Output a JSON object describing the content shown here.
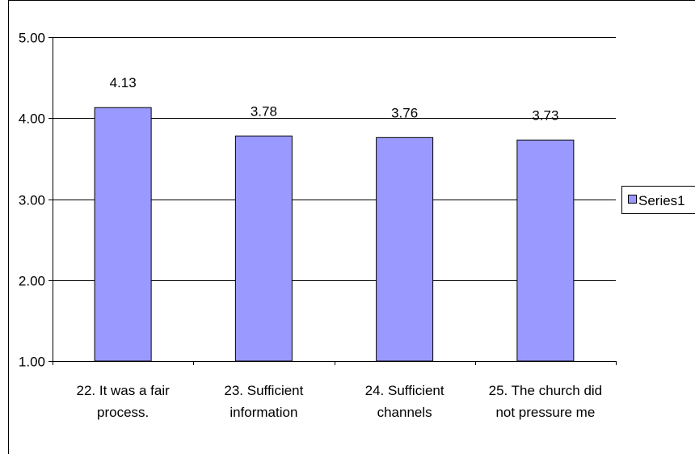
{
  "chart_data": {
    "type": "bar",
    "categories": [
      [
        "22. It was a fair",
        "process."
      ],
      [
        "23. Sufficient",
        "information"
      ],
      [
        "24. Sufficient",
        "channels"
      ],
      [
        "25. The church did",
        "not pressure me"
      ]
    ],
    "series": [
      {
        "name": "Series1",
        "values": [
          4.13,
          3.78,
          3.76,
          3.73
        ]
      }
    ],
    "data_labels": [
      "4.13",
      "3.78",
      "3.76",
      "3.73"
    ],
    "y_ticks": [
      "1.00",
      "2.00",
      "3.00",
      "4.00",
      "5.00"
    ],
    "ylim": [
      1,
      5
    ],
    "grid": true,
    "legend_position": "right",
    "title": "",
    "xlabel": "",
    "ylabel": "",
    "colors": {
      "bar_fill": "#9999ff",
      "bar_stroke": "#000000",
      "grid": "#000000",
      "frame": "#000000"
    }
  }
}
